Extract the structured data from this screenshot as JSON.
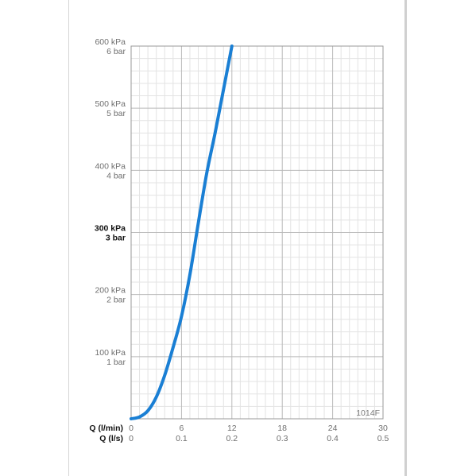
{
  "chart_data": {
    "type": "line",
    "code": "1014F",
    "x_axis_primary": {
      "label": "Q (l/min)",
      "ticks": [
        "0",
        "6",
        "12",
        "18",
        "24",
        "30"
      ],
      "range": [
        0,
        30
      ]
    },
    "x_axis_secondary": {
      "label": "Q (l/s)",
      "ticks": [
        "0",
        "0.1",
        "0.2",
        "0.3",
        "0.4",
        "0.5"
      ]
    },
    "y_axis": {
      "range": [
        0,
        600
      ],
      "unit": "kPa",
      "ticks": [
        {
          "value": 100,
          "kpa": "100 kPa",
          "bar": "1 bar",
          "bold": false
        },
        {
          "value": 200,
          "kpa": "200 kPa",
          "bar": "2 bar",
          "bold": false
        },
        {
          "value": 300,
          "kpa": "300 kPa",
          "bar": "3 bar",
          "bold": true
        },
        {
          "value": 400,
          "kpa": "400 kPa",
          "bar": "4 bar",
          "bold": false
        },
        {
          "value": 500,
          "kpa": "500 kPa",
          "bar": "5 bar",
          "bold": false
        },
        {
          "value": 600,
          "kpa": "600 kPa",
          "bar": "6 bar",
          "bold": false
        }
      ]
    },
    "grid": true,
    "series": [
      {
        "color": "#1a7fd4",
        "points": [
          [
            0,
            0
          ],
          [
            1,
            3
          ],
          [
            2,
            13
          ],
          [
            3,
            35
          ],
          [
            4,
            70
          ],
          [
            5,
            115
          ],
          [
            6,
            165
          ],
          [
            7,
            232
          ],
          [
            8,
            315
          ],
          [
            9,
            395
          ],
          [
            10,
            460
          ],
          [
            11,
            530
          ],
          [
            12,
            600
          ]
        ]
      }
    ],
    "colors": {
      "grid_major": "#b9b9b9",
      "grid_minor": "#e3e3e3",
      "frame": "#9a9a9a"
    }
  }
}
